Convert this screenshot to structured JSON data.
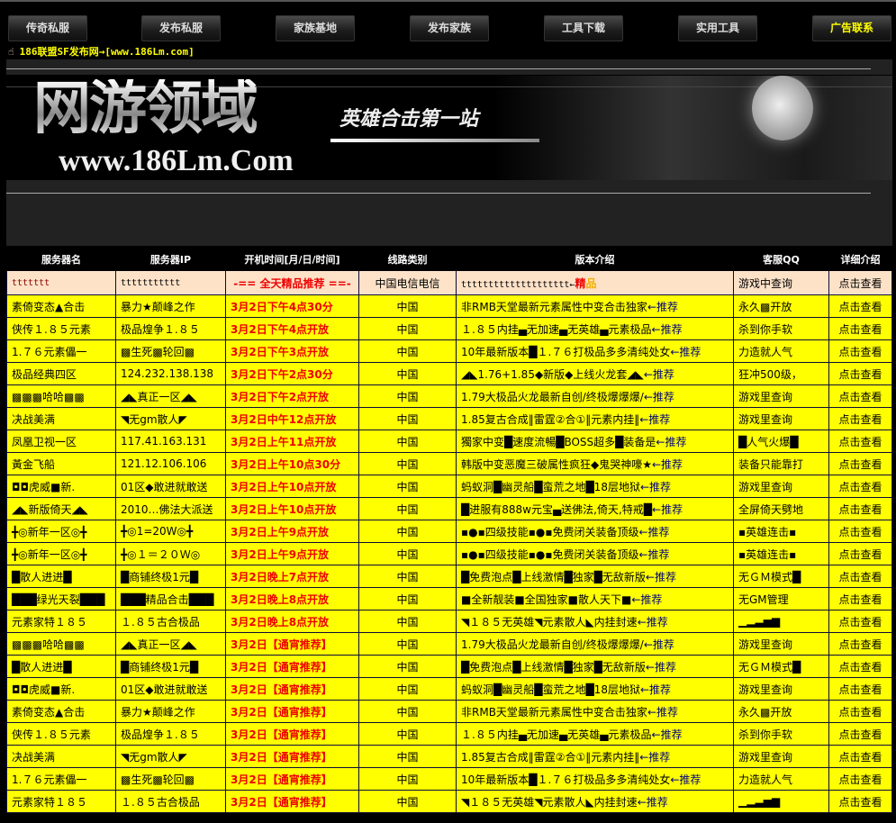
{
  "nav": [
    {
      "label": "传奇私服"
    },
    {
      "label": "发布私服"
    },
    {
      "label": "家族基地"
    },
    {
      "label": "发布家族"
    },
    {
      "label": "工具下载"
    },
    {
      "label": "实用工具"
    },
    {
      "label": "广告联系",
      "highlight": true
    }
  ],
  "marquee": "186联盟SF发布网→[www.186Lm.com]",
  "banner": {
    "title": "网游领域",
    "slogan": "英雄合击第一站",
    "url": "www.186Lm.Com"
  },
  "table": {
    "headers": [
      "服务器名",
      "服务器IP",
      "开机时间[月/日/时间]",
      "线路类别",
      "版本介绍",
      "客服QQ",
      "详细介绍"
    ],
    "first_row": {
      "name": "ttttttt",
      "ip": "ttttttttttt",
      "time": "-== 全天精品推荐 ==-",
      "line": "中国电信电信",
      "intro": "tttttttttttttttttttt←",
      "intro_tag1": "精",
      "intro_tag2": "品",
      "qq": "游戏中查询",
      "detail": "点击查看"
    },
    "rec_suffix": "←推荐",
    "detail_label": "点击查看",
    "rows": [
      {
        "name": "素倚变态▲合击",
        "ip": "暴力★颠峰之作",
        "time": "3月2日下午4点30分",
        "line": "中国",
        "intro": "非RMB天堂最新元素属性中变合击独家",
        "qq": "永久▩开放"
      },
      {
        "name": "侠传１.８５元素",
        "ip": "极品煌争１.８５",
        "time": "3月2日下午4点开放",
        "line": "中国",
        "intro": "１.８５内挂▄无加速▄无英雄▄元素极品",
        "qq": "杀到你手软"
      },
      {
        "name": "1.７６元素儡一",
        "ip": "▩生死▩轮回▩",
        "time": "3月2日下午3点开放",
        "line": "中国",
        "intro": "10年最新版本█１.７６打极品多多清纯处女",
        "qq": "力造就人气"
      },
      {
        "name": "极品经典四区",
        "ip": "124.232.138.138",
        "time": "3月2日下午2点30分",
        "line": "中国",
        "intro": "◢◣1.76+1.85◆新版◆上线火龙套◢◣",
        "qq": "狂冲500级，"
      },
      {
        "name": "▩▩▩哈哈▩▩",
        "ip": "◢◣真正一区◢◣",
        "time": "3月2日下午2点开放",
        "line": "中国",
        "intro": "1.79大极品火龙最新自创/终极爆爆爆/",
        "qq": "游戏里查询"
      },
      {
        "name": "决战美满",
        "ip": "◥无gm散人◤",
        "time": "3月2日中午12点开放",
        "line": "中国",
        "intro": "1.85复古合成‖雷霆②合①‖元素内挂‖",
        "qq": "游戏里查询"
      },
      {
        "name": "凤凰卫视一区",
        "ip": "117.41.163.131",
        "time": "3月2日上午11点开放",
        "line": "中国",
        "intro": "獨家中变█速度流暢█BOSS超多█装备是",
        "qq": "█人气火爆█"
      },
      {
        "name": "黃金飞船",
        "ip": "121.12.106.106",
        "time": "3月2日上午10点30分",
        "line": "中国",
        "intro": "韩版中变恶魔三破属性疯狂◆鬼哭神嚎★",
        "qq": "装备只能靠打"
      },
      {
        "name": "◘◘虎威■新.",
        "ip": "01区◆敢进就敢送",
        "time": "3月2日上午10点开放",
        "line": "中国",
        "intro": "蚂蚁洞█幽灵船█蛮荒之地█18层地狱",
        "qq": "游戏里查询"
      },
      {
        "name": "◢◣新版倚天◢◣",
        "ip": "2010…佛法大派送",
        "time": "3月2日上午10点开放",
        "line": "中国",
        "intro": "█进服有888w元宝▄送佛法,倚天,特戒█",
        "qq": "全屏倚天劈地"
      },
      {
        "name": "╋◎新年一区◎╋",
        "ip": "╋◎1=20W◎╋",
        "time": "3月2日上午9点开放",
        "line": "中国",
        "intro": "▪●▪四级技能▪●▪免费闭关装备顶级",
        "qq": "▪英雄连击▪"
      },
      {
        "name": "╋◎新年一区◎╋",
        "ip": "╋◎１＝２０Ｗ◎",
        "time": "3月2日上午9点开放",
        "line": "中国",
        "intro": "▪●▪四级技能▪●▪免费闭关装备顶级",
        "qq": "▪英雄连击▪"
      },
      {
        "name": "█散人进进█",
        "ip": "█商铺终极1元█",
        "time": "3月2日晚上7点开放",
        "line": "中国",
        "intro": "█免费泡点█上线激情█独家█无敌新版",
        "qq": "无ＧＭ模式█"
      },
      {
        "name": "███绿光天裂███",
        "ip": "███精品合击███",
        "time": "3月2日晚上8点开放",
        "line": "中国",
        "intro": "■全新靓装■全国独家■散人天下■",
        "qq": "无GM管理"
      },
      {
        "name": "元素家特１８５",
        "ip": "１.８５古合极品",
        "time": "3月2日晚上8点开放",
        "line": "中国",
        "intro": "◥１８５无英雄◥元素散人◣内挂封速",
        "qq": "▁▂▃▅▆"
      },
      {
        "name": "▩▩▩哈哈▩▩",
        "ip": "◢◣真正一区◢◣",
        "time": "3月2日【通宵推荐】",
        "line": "中国",
        "intro": "1.79大极品火龙最新自创/终极爆爆爆/",
        "qq": "游戏里查询"
      },
      {
        "name": "█散人进进█",
        "ip": "█商铺终极1元█",
        "time": "3月2日【通宵推荐】",
        "line": "中国",
        "intro": "█免费泡点█上线激情█独家█无敌新版",
        "qq": "无ＧＭ模式█"
      },
      {
        "name": "◘◘虎威■新.",
        "ip": "01区◆敢进就敢送",
        "time": "3月2日【通宵推荐】",
        "line": "中国",
        "intro": "蚂蚁洞█幽灵船█蛮荒之地█18层地狱",
        "qq": "游戏里查询"
      },
      {
        "name": "素倚变态▲合击",
        "ip": "暴力★颠峰之作",
        "time": "3月2日【通宵推荐】",
        "line": "中国",
        "intro": "非RMB天堂最新元素属性中变合击独家",
        "qq": "永久▩开放"
      },
      {
        "name": "侠传１.８５元素",
        "ip": "极品煌争１.８５",
        "time": "3月2日【通宵推荐】",
        "line": "中国",
        "intro": "１.８５内挂▄无加速▄无英雄▄元素极品",
        "qq": "杀到你手软"
      },
      {
        "name": "决战美满",
        "ip": "◥无gm散人◤",
        "time": "3月2日【通宵推荐】",
        "line": "中国",
        "intro": "1.85复古合成‖雷霆②合①‖元素内挂‖",
        "qq": "游戏里查询"
      },
      {
        "name": "1.７６元素儡一",
        "ip": "▩生死▩轮回▩",
        "time": "3月2日【通宵推荐】",
        "line": "中国",
        "intro": "10年最新版本█１.７６打极品多多清纯处女",
        "qq": "力造就人气"
      },
      {
        "name": "元素家特１８５",
        "ip": "１.８５古合极品",
        "time": "3月2日【通宵推荐】",
        "line": "中国",
        "intro": "◥１８５无英雄◥元素散人◣内挂封速",
        "qq": "▁▂▃▅▆"
      }
    ]
  },
  "colors": {
    "row_bg": "#ffff00",
    "first_row_bg": "#fde2c8",
    "time_text": "#ee0000",
    "recommend_text": "#000080",
    "nav_highlight": "#ffff00"
  }
}
